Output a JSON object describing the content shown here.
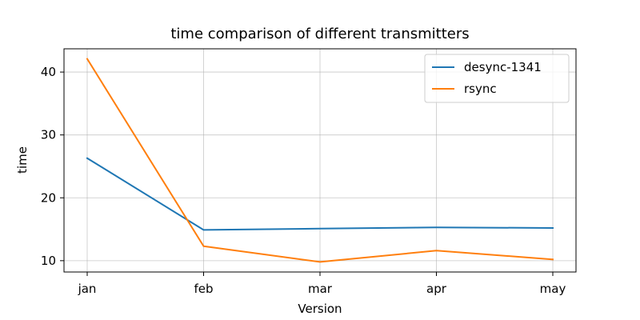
{
  "chart_data": {
    "type": "line",
    "title": "time comparison of different transmitters",
    "xlabel": "Version",
    "ylabel": "time",
    "categories": [
      "jan",
      "feb",
      "mar",
      "apr",
      "may"
    ],
    "series": [
      {
        "name": "desync-1341",
        "color": "#1f77b4",
        "values": [
          26.3,
          14.9,
          15.1,
          15.3,
          15.2
        ]
      },
      {
        "name": "rsync",
        "color": "#ff7f0e",
        "values": [
          42.1,
          12.3,
          9.8,
          11.6,
          10.2
        ]
      }
    ],
    "ylim": [
      8.2,
      43.7
    ],
    "yticks": [
      10,
      20,
      30,
      40
    ],
    "grid": true,
    "legend_position": "top-right"
  }
}
